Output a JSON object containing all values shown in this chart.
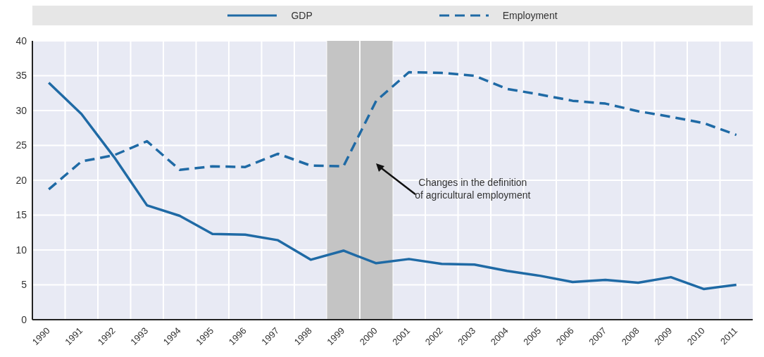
{
  "chart_data": {
    "type": "line",
    "categories": [
      "1990",
      "1991",
      "1992",
      "1993",
      "1994",
      "1995",
      "1996",
      "1997",
      "1998",
      "1999",
      "2000",
      "2001",
      "2002",
      "2003",
      "2004",
      "2005",
      "2006",
      "2007",
      "2008",
      "2009",
      "2010",
      "2011"
    ],
    "series": [
      {
        "name": "GDP",
        "color": "#1f6aa5",
        "line_style": "solid",
        "values": [
          34.0,
          29.5,
          23.3,
          16.4,
          14.9,
          12.3,
          12.2,
          11.4,
          8.6,
          9.9,
          8.1,
          8.7,
          8.0,
          7.9,
          7.0,
          6.3,
          5.4,
          5.7,
          5.3,
          6.1,
          4.4,
          5.0
        ]
      },
      {
        "name": "Employment",
        "color": "#1f6aa5",
        "line_style": "dashed",
        "values": [
          18.7,
          22.7,
          23.6,
          25.6,
          21.5,
          22.0,
          21.9,
          23.8,
          22.1,
          22.0,
          31.4,
          35.5,
          35.4,
          35.0,
          33.1,
          32.3,
          31.4,
          31.0,
          29.9,
          29.1,
          28.2,
          26.5
        ]
      }
    ],
    "ylim": [
      0,
      40
    ],
    "yticks": [
      0,
      5,
      10,
      15,
      20,
      25,
      30,
      35,
      40
    ],
    "bands": [
      {
        "axis": "x",
        "from": "1999",
        "to": "2000",
        "color": "#c4c4c4"
      }
    ],
    "annotations": [
      "Changes in the definition\nof agricultural employment"
    ],
    "grid": true,
    "legend": "top",
    "marker": "none"
  }
}
